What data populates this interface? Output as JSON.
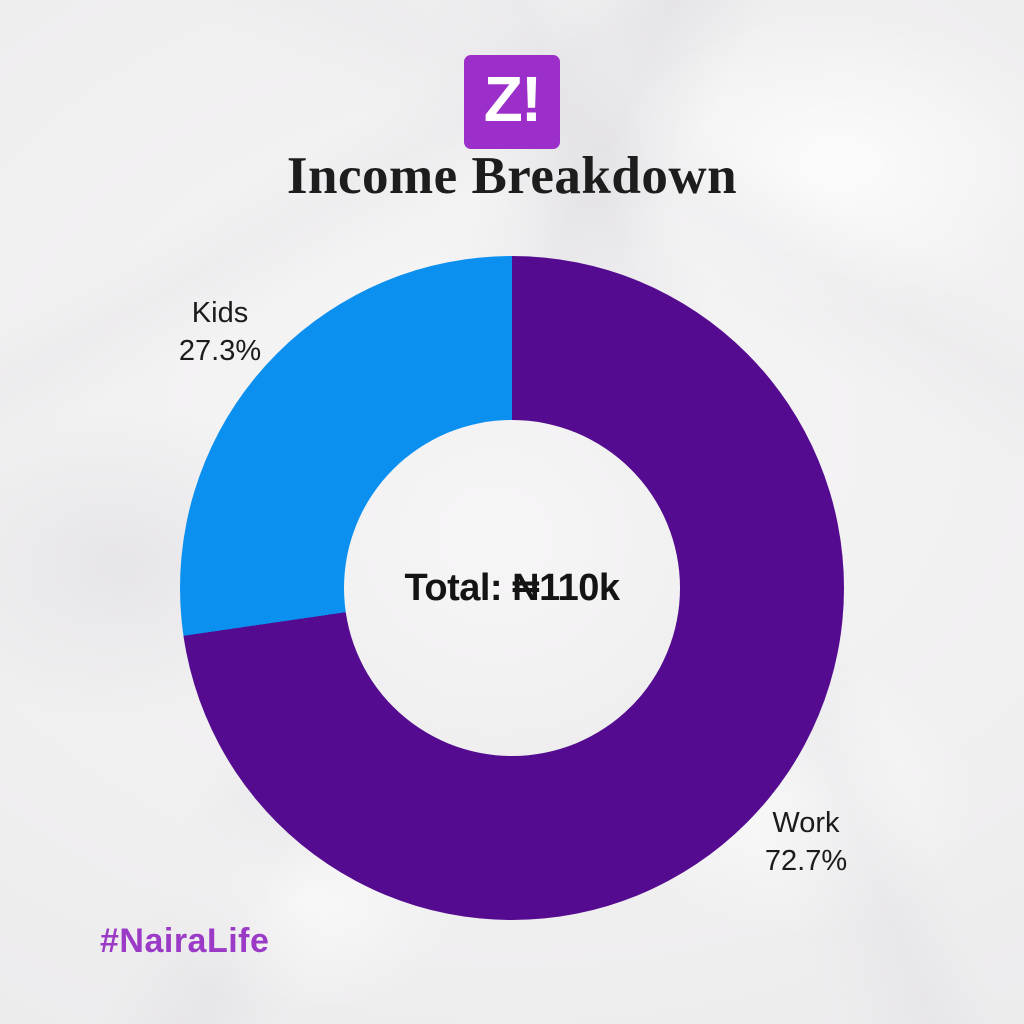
{
  "logo": {
    "text": "Z!",
    "background_color": "#9c2fc9",
    "text_color": "#ffffff"
  },
  "title": "Income Breakdown",
  "hashtag": {
    "text": "#NairaLife",
    "color": "#9b3ac6"
  },
  "chart_data": {
    "type": "pie",
    "style": "donut",
    "title": "Income Breakdown",
    "center_label": "Total: ₦110k",
    "total_label": "₦110k",
    "start_angle": "top",
    "direction": "clockwise",
    "legend_position": "outside-slice-labels",
    "series": [
      {
        "name": "Work",
        "value": 72.7,
        "pct_label": "72.7%",
        "color": "#540b90"
      },
      {
        "name": "Kids",
        "value": 27.3,
        "pct_label": "27.3%",
        "color": "#0b90f0"
      }
    ]
  }
}
